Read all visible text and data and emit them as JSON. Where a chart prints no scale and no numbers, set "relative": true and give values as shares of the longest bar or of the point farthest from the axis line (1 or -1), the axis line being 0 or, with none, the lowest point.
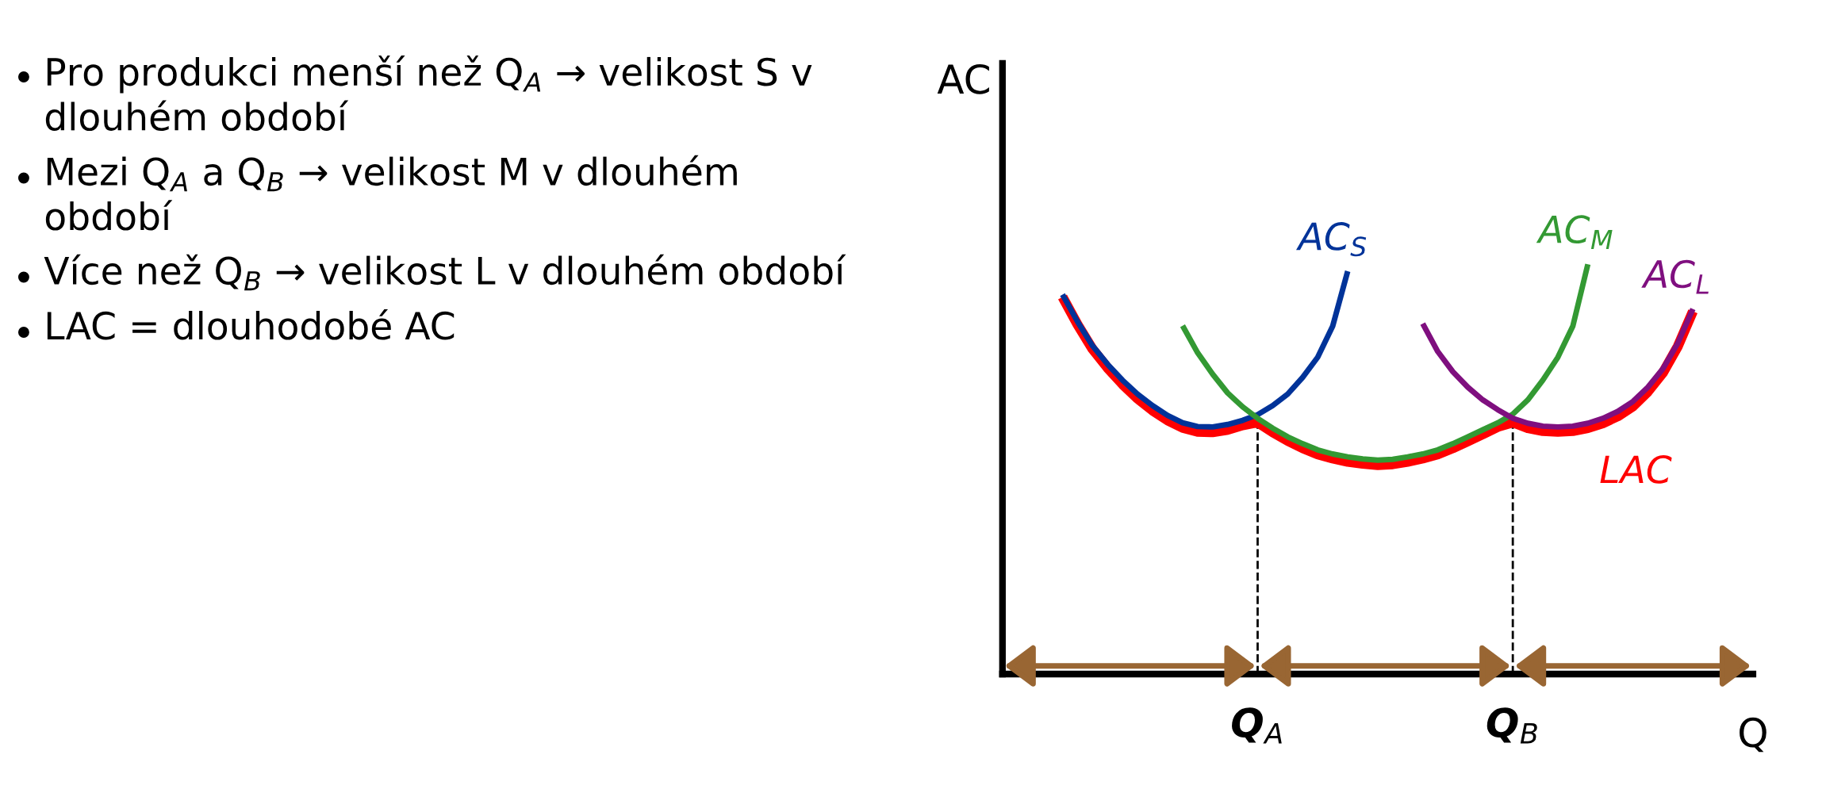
{
  "chart_data": {
    "type": "line",
    "relative": true,
    "xlabel": "Q",
    "ylabel": "AC",
    "categories": [
      null,
      null,
      null,
      null,
      null,
      null,
      null,
      null,
      null,
      null,
      null,
      null,
      null,
      null,
      null,
      null,
      null,
      "Q$_{A}$",
      null,
      null,
      null,
      null,
      null,
      null,
      null,
      null,
      null,
      null,
      null,
      null,
      null,
      null,
      null,
      null,
      "Q$_{B}$",
      null,
      null,
      null,
      null,
      null,
      null,
      null,
      null,
      null,
      null,
      null,
      null,
      null,
      null,
      null,
      null
    ],
    "tick_labels": "x",
    "grid": false,
    "legend": false,
    "marker": "none",
    "line_style": "solid",
    "series": [
      {
        "name": "LAC",
        "color": "#ff0000",
        "values": [
          null,
          null,
          null,
          null,
          0.92,
          0.853,
          0.793,
          0.747,
          0.707,
          0.672,
          0.643,
          0.619,
          0.601,
          0.591,
          0.59,
          0.596,
          0.607,
          0.614,
          0.59,
          0.569,
          0.551,
          0.536,
          0.526,
          0.518,
          0.513,
          0.51,
          0.512,
          0.518,
          0.526,
          0.536,
          0.551,
          0.568,
          0.585,
          0.603,
          0.614,
          0.6,
          0.593,
          0.591,
          0.593,
          0.6,
          0.612,
          0.629,
          0.653,
          0.689,
          0.735,
          0.8,
          0.885,
          null,
          null,
          null,
          null
        ]
      },
      {
        "name": "AC$_{S}$",
        "color": "#003399",
        "values": [
          null,
          null,
          null,
          null,
          0.926,
          0.86,
          0.801,
          0.756,
          0.717,
          0.683,
          0.655,
          0.631,
          0.613,
          0.604,
          0.603,
          0.609,
          0.619,
          0.633,
          0.655,
          0.683,
          0.724,
          0.773,
          0.849,
          0.983,
          null,
          null,
          null,
          null,
          null,
          null,
          null,
          null,
          null,
          null,
          null,
          null,
          null,
          null,
          null,
          null,
          null,
          null,
          null,
          null,
          null,
          null,
          null,
          null,
          null,
          null,
          null
        ]
      },
      {
        "name": "AC$_{M}$",
        "color": "#339933",
        "values": [
          null,
          null,
          null,
          null,
          null,
          null,
          null,
          null,
          null,
          null,
          null,
          null,
          0.85,
          0.784,
          0.732,
          0.686,
          0.652,
          0.624,
          0.6,
          0.579,
          0.562,
          0.547,
          0.537,
          0.53,
          0.525,
          0.522,
          0.524,
          0.53,
          0.537,
          0.547,
          0.562,
          0.579,
          0.596,
          0.613,
          0.634,
          0.669,
          0.717,
          0.773,
          0.849,
          1.0,
          null,
          null,
          null,
          null,
          null,
          null,
          null,
          null,
          null,
          null,
          null
        ]
      },
      {
        "name": "AC$_{L}$",
        "color": "#7f0f7f",
        "values": [
          null,
          null,
          null,
          null,
          null,
          null,
          null,
          null,
          null,
          null,
          null,
          null,
          null,
          null,
          null,
          null,
          null,
          null,
          null,
          null,
          null,
          null,
          null,
          null,
          null,
          null,
          null,
          null,
          0.855,
          0.787,
          0.738,
          0.7,
          0.669,
          0.645,
          0.624,
          0.612,
          0.605,
          0.603,
          0.605,
          0.612,
          0.624,
          0.641,
          0.665,
          0.7,
          0.745,
          0.808,
          0.891,
          null,
          null,
          null,
          null
        ]
      }
    ],
    "ref_lines": [
      {
        "axis": "x",
        "value": "Q$_{A}$",
        "color": "#000000",
        "line_style": "dashed"
      },
      {
        "axis": "x",
        "value": "Q$_{B}$",
        "color": "#000000",
        "line_style": "dashed"
      }
    ],
    "annotations": [
      "Pro produkci menší než Q$_{A}$ → velikost S v dlouhém období",
      "Mezi Q$_{A}$ a Q$_{B}$ → velikost M v dlouhém období",
      "Více než Q$_{B}$ → velikost L v dlouhém období",
      "LAC = dlouhodobé AC"
    ]
  }
}
